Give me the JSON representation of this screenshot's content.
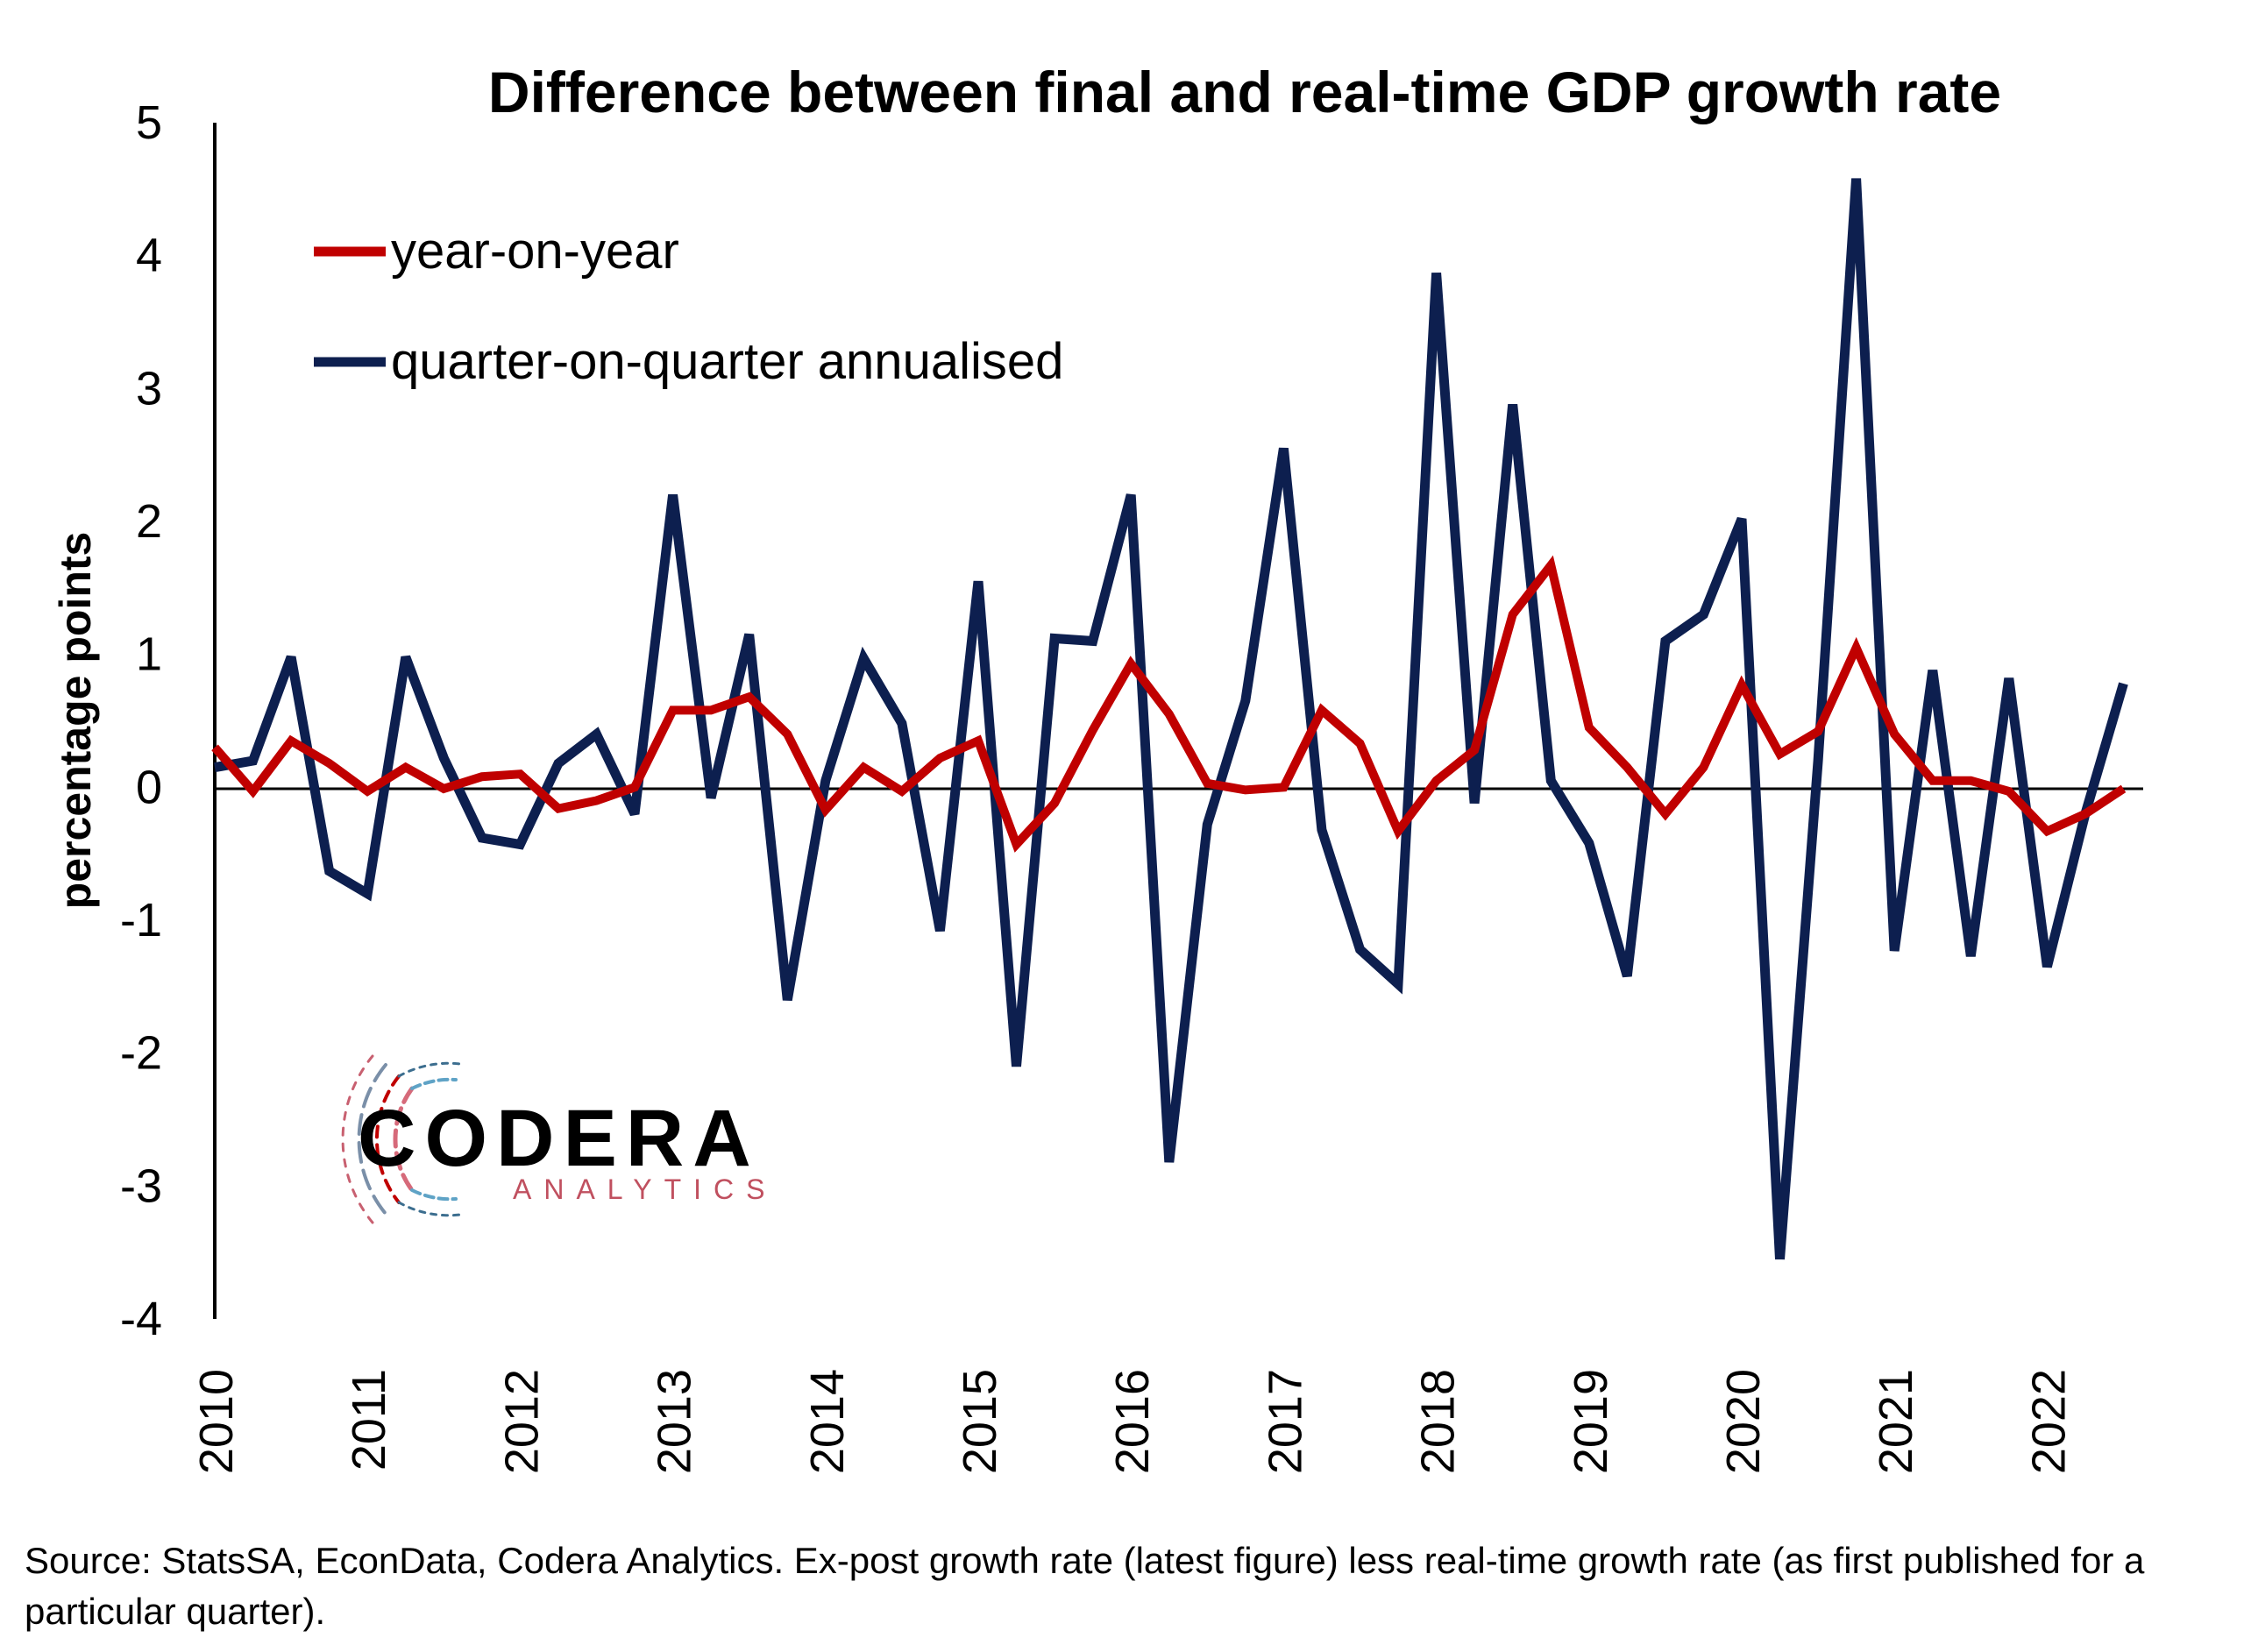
{
  "chart_data": {
    "type": "line",
    "title": "Difference between final and real-time GDP growth rate",
    "ylabel": "percentage points",
    "xlabel": "",
    "ylim": [
      -4,
      5
    ],
    "yticks": [
      5,
      4,
      3,
      2,
      1,
      0,
      -1,
      -2,
      -3,
      -4
    ],
    "ytick_labels": [
      "5",
      "4",
      "3",
      "2",
      "1",
      "0",
      "-1",
      "-2",
      "-3",
      "-4"
    ],
    "xlim": [
      2010.0,
      2022.75
    ],
    "xticks": [
      2010,
      2011,
      2012,
      2013,
      2014,
      2015,
      2016,
      2017,
      2018,
      2019,
      2020,
      2021,
      2022
    ],
    "xtick_labels": [
      "2010",
      "2011",
      "2012",
      "2013",
      "2014",
      "2015",
      "2016",
      "2017",
      "2018",
      "2019",
      "2020",
      "2021",
      "2022"
    ],
    "x": [
      2010.0,
      2010.25,
      2010.5,
      2010.75,
      2011.0,
      2011.25,
      2011.5,
      2011.75,
      2012.0,
      2012.25,
      2012.5,
      2012.75,
      2013.0,
      2013.25,
      2013.5,
      2013.75,
      2014.0,
      2014.25,
      2014.5,
      2014.75,
      2015.0,
      2015.25,
      2015.5,
      2015.75,
      2016.0,
      2016.25,
      2016.5,
      2016.75,
      2017.0,
      2017.25,
      2017.5,
      2017.75,
      2018.0,
      2018.25,
      2018.5,
      2018.75,
      2019.0,
      2019.25,
      2019.5,
      2019.75,
      2020.0,
      2020.25,
      2020.5,
      2020.75,
      2021.0,
      2021.25,
      2021.5,
      2021.75,
      2022.0,
      2022.25,
      2022.5
    ],
    "series": [
      {
        "name": "year-on-year",
        "color": "#c00000",
        "values": [
          0.3,
          -0.03,
          0.35,
          0.18,
          -0.03,
          0.15,
          -0.01,
          0.08,
          0.1,
          -0.16,
          -0.1,
          0.0,
          0.58,
          0.58,
          0.68,
          0.4,
          -0.17,
          0.15,
          -0.03,
          0.22,
          0.35,
          -0.43,
          -0.12,
          0.43,
          0.93,
          0.55,
          0.03,
          -0.02,
          0.0,
          0.58,
          0.33,
          -0.33,
          0.05,
          0.28,
          1.3,
          1.67,
          0.45,
          0.15,
          -0.2,
          0.15,
          0.77,
          0.25,
          0.42,
          1.05,
          0.4,
          0.05,
          0.05,
          -0.03,
          -0.33,
          -0.2,
          -0.01
        ]
      },
      {
        "name": "quarter-on-quarter annualised",
        "color": "#0d1f4f",
        "values": [
          0.15,
          0.2,
          0.98,
          -0.63,
          -0.8,
          0.98,
          0.22,
          -0.38,
          -0.43,
          0.18,
          0.4,
          -0.2,
          2.2,
          -0.08,
          1.15,
          -1.6,
          0.05,
          0.97,
          0.48,
          -1.08,
          1.55,
          -2.1,
          1.12,
          1.1,
          2.2,
          -2.82,
          -0.28,
          0.65,
          2.55,
          -0.32,
          -1.22,
          -1.48,
          3.87,
          -0.12,
          2.88,
          0.05,
          -0.42,
          -1.42,
          1.1,
          1.3,
          2.02,
          -3.55,
          0.2,
          4.58,
          -1.23,
          0.88,
          -1.27,
          0.82,
          -1.35,
          -0.2,
          0.78
        ]
      }
    ],
    "legend_position": "top-left",
    "grid": false
  },
  "logo": {
    "name": "CODERA",
    "tagline": "ANALYTICS"
  },
  "source_note": "Source: StatsSA, EconData, Codera Analytics. Ex-post growth rate (latest figure) less real-time growth rate (as first published for a particular quarter)."
}
